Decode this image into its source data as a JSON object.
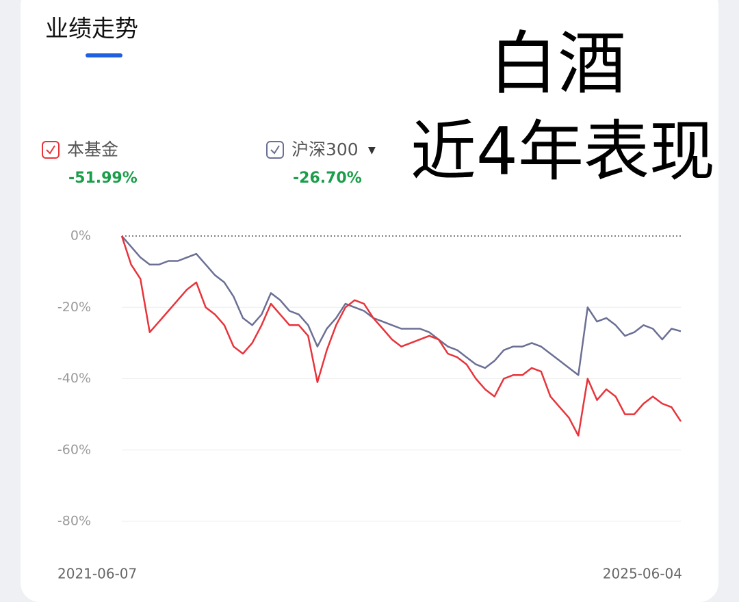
{
  "chart_data": {
    "type": "line",
    "title": "业绩走势",
    "annotations": [
      "白酒",
      "近4年表现"
    ],
    "categories": [
      "2021-06-07",
      null,
      null,
      null,
      null,
      null,
      null,
      null,
      null,
      null,
      null,
      null,
      null,
      null,
      null,
      null,
      null,
      null,
      null,
      null,
      null,
      null,
      null,
      null,
      null,
      null,
      null,
      null,
      null,
      null,
      null,
      null,
      null,
      null,
      null,
      null,
      null,
      null,
      null,
      null,
      null,
      null,
      null,
      null,
      null,
      null,
      null,
      null,
      null,
      null,
      null,
      null,
      null,
      null,
      null,
      null,
      null,
      null,
      null,
      null,
      "2025-06-04"
    ],
    "series": [
      {
        "name": "本基金",
        "color": "#e8333a",
        "final_return": -51.99,
        "final_return_label": "-51.99%",
        "values": [
          0,
          -8,
          -12,
          -27,
          -24,
          -21,
          -18,
          -15,
          -13,
          -20,
          -22,
          -25,
          -31,
          -33,
          -30,
          -25,
          -19,
          -22,
          -25,
          -25,
          -28,
          -41,
          -32,
          -25,
          -20,
          -18,
          -19,
          -23,
          -26,
          -29,
          -31,
          -30,
          -29,
          -28,
          -29,
          -33,
          -34,
          -36,
          -40,
          -43,
          -45,
          -40,
          -39,
          -39,
          -37,
          -38,
          -45,
          -48,
          -51,
          -56,
          -40,
          -46,
          -43,
          -45,
          -50,
          -50,
          -47,
          -45,
          -47,
          -48,
          -51.99
        ]
      },
      {
        "name": "沪深300",
        "color": "#6b6f94",
        "final_return": -26.7,
        "final_return_label": "-26.70%",
        "values": [
          0,
          -3,
          -6,
          -8,
          -8,
          -7,
          -7,
          -6,
          -5,
          -8,
          -11,
          -13,
          -17,
          -23,
          -25,
          -22,
          -16,
          -18,
          -21,
          -22,
          -25,
          -31,
          -26,
          -23,
          -19,
          -20,
          -21,
          -23,
          -24,
          -25,
          -26,
          -26,
          -26,
          -27,
          -29,
          -31,
          -32,
          -34,
          -36,
          -37,
          -35,
          -32,
          -31,
          -31,
          -30,
          -31,
          -33,
          -35,
          -37,
          -39,
          -20,
          -24,
          -23,
          -25,
          -28,
          -27,
          -25,
          -26,
          -29,
          -26,
          -26.7
        ]
      }
    ],
    "ylim": [
      -80,
      0
    ],
    "yticks": [
      {
        "value": 0,
        "label": "0%"
      },
      {
        "value": -20,
        "label": "-20%"
      },
      {
        "value": -40,
        "label": "-40%"
      },
      {
        "value": -60,
        "label": "-60%"
      },
      {
        "value": -80,
        "label": "-80%"
      }
    ],
    "grid": true
  }
}
